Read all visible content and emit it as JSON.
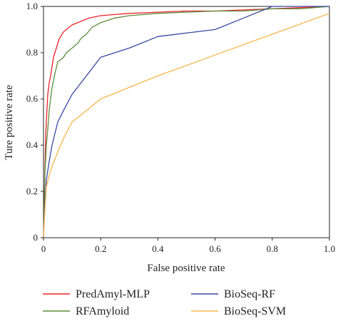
{
  "chart_data": {
    "type": "line",
    "xlabel": "False positive rate",
    "ylabel": "Ture positive rate",
    "xlim": [
      0,
      1
    ],
    "ylim": [
      0,
      1
    ],
    "xticks": [
      "0",
      "0.2",
      "0.4",
      "0.6",
      "0.8",
      "1.0"
    ],
    "yticks": [
      "0",
      "0.2",
      "0.4",
      "0.6",
      "0.8",
      "1.0"
    ],
    "grid": false,
    "legend_position": "bottom",
    "series": [
      {
        "name": "PredAmyl-MLP",
        "color": "#e8242a",
        "x": [
          0,
          0.005,
          0.008,
          0.012,
          0.015,
          0.02,
          0.025,
          0.03,
          0.035,
          0.04,
          0.045,
          0.05,
          0.055,
          0.06,
          0.065,
          0.07,
          0.08,
          0.09,
          0.1,
          0.11,
          0.12,
          0.14,
          0.16,
          0.18,
          0.2,
          0.25,
          0.3,
          0.4,
          0.5,
          0.6,
          0.7,
          0.8,
          0.9,
          1.0
        ],
        "y": [
          0,
          0.3,
          0.45,
          0.55,
          0.62,
          0.67,
          0.7,
          0.74,
          0.78,
          0.8,
          0.82,
          0.84,
          0.86,
          0.87,
          0.88,
          0.89,
          0.9,
          0.91,
          0.92,
          0.925,
          0.93,
          0.94,
          0.95,
          0.955,
          0.96,
          0.965,
          0.97,
          0.975,
          0.98,
          0.98,
          0.985,
          0.99,
          0.995,
          1.0
        ]
      },
      {
        "name": "RFAmyloid",
        "color": "#5e8c3a",
        "x": [
          0,
          0.005,
          0.01,
          0.015,
          0.02,
          0.03,
          0.04,
          0.05,
          0.06,
          0.07,
          0.08,
          0.09,
          0.1,
          0.12,
          0.13,
          0.15,
          0.17,
          0.2,
          0.25,
          0.3,
          0.4,
          0.5,
          0.6,
          0.7,
          0.8,
          0.9,
          1.0
        ],
        "y": [
          0,
          0.28,
          0.4,
          0.47,
          0.55,
          0.65,
          0.71,
          0.76,
          0.77,
          0.78,
          0.8,
          0.81,
          0.82,
          0.84,
          0.86,
          0.88,
          0.91,
          0.93,
          0.95,
          0.96,
          0.97,
          0.975,
          0.98,
          0.98,
          0.99,
          0.99,
          1.0
        ]
      },
      {
        "name": "BioSeq-RF",
        "color": "#3848a0",
        "x": [
          0,
          0.005,
          0.01,
          0.02,
          0.03,
          0.05,
          0.07,
          0.1,
          0.15,
          0.2,
          0.3,
          0.4,
          0.5,
          0.6,
          0.7,
          0.8,
          0.9,
          1.0
        ],
        "y": [
          0,
          0.15,
          0.25,
          0.33,
          0.4,
          0.5,
          0.55,
          0.62,
          0.7,
          0.78,
          0.82,
          0.87,
          0.885,
          0.9,
          0.95,
          1.0,
          1.0,
          1.0
        ]
      },
      {
        "name": "BioSeq-SVM",
        "color": "#f5b54a",
        "x": [
          0,
          0.005,
          0.01,
          0.02,
          0.03,
          0.05,
          0.07,
          0.1,
          0.15,
          0.2,
          0.4,
          0.6,
          0.8,
          1.0
        ],
        "y": [
          0,
          0.12,
          0.22,
          0.27,
          0.31,
          0.37,
          0.43,
          0.5,
          0.55,
          0.6,
          0.7,
          0.79,
          0.88,
          0.97
        ]
      }
    ]
  }
}
